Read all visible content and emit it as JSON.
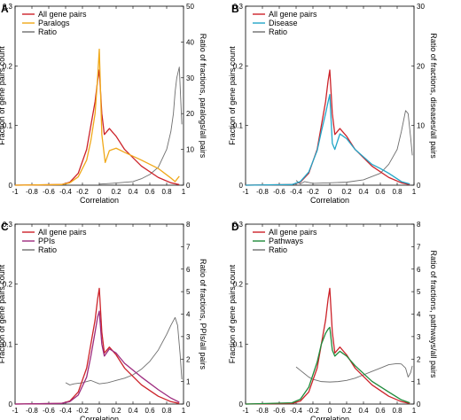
{
  "chart_data": [
    {
      "type": "line",
      "panel": "A",
      "xlabel": "Correlation",
      "ylabel": "Fraction of gene pairs count",
      "y2label": "Ratio of fractions, paralogs/all pairs",
      "xlim": [
        -1,
        1
      ],
      "ylim": [
        0,
        0.3
      ],
      "y2lim": [
        0,
        50
      ],
      "xticks": [
        -1,
        -0.8,
        -0.6,
        -0.4,
        -0.2,
        0,
        0.2,
        0.4,
        0.6,
        0.8,
        1
      ],
      "xtick_labels": [
        "-1",
        "-0.8",
        "-0.6",
        "-0.4",
        "-0.2",
        "0",
        "0.2",
        "0.4",
        "0.6",
        "0.8",
        "1"
      ],
      "yticks": [
        0,
        0.1,
        0.2,
        0.3
      ],
      "ytick_labels": [
        "0",
        "0.1",
        "0.2",
        "0.3"
      ],
      "y2ticks": [
        0,
        10,
        20,
        30,
        40,
        50
      ],
      "y2tick_labels": [
        "0",
        "10",
        "20",
        "30",
        "40",
        "50"
      ],
      "legend": "top-left",
      "series": [
        {
          "name": "All gene pairs",
          "color": "#cc2229",
          "axis": "left",
          "x": [
            -1,
            -0.45,
            -0.35,
            -0.25,
            -0.15,
            -0.1,
            -0.05,
            -0.02,
            0,
            0.03,
            0.06,
            0.12,
            0.2,
            0.3,
            0.5,
            0.7,
            0.85,
            0.95
          ],
          "y": [
            0,
            0.001,
            0.005,
            0.02,
            0.06,
            0.1,
            0.14,
            0.175,
            0.193,
            0.12,
            0.085,
            0.095,
            0.082,
            0.06,
            0.032,
            0.013,
            0.004,
            0.001
          ]
        },
        {
          "name": "Paralogs",
          "color": "#f0a818",
          "axis": "left",
          "x": [
            -1,
            -0.45,
            -0.35,
            -0.25,
            -0.15,
            -0.1,
            -0.05,
            -0.02,
            0,
            0.03,
            0.07,
            0.12,
            0.2,
            0.3,
            0.5,
            0.7,
            0.85,
            0.9,
            0.95
          ],
          "y": [
            0,
            0.001,
            0.004,
            0.014,
            0.042,
            0.075,
            0.12,
            0.18,
            0.228,
            0.085,
            0.038,
            0.058,
            0.062,
            0.055,
            0.042,
            0.028,
            0.012,
            0.006,
            0.015
          ]
        },
        {
          "name": "Ratio",
          "color": "#6e6e6e",
          "axis": "right",
          "x": [
            0,
            0.2,
            0.4,
            0.5,
            0.6,
            0.7,
            0.8,
            0.85,
            0.88,
            0.9,
            0.92,
            0.95,
            0.98
          ],
          "y": [
            0.3,
            0.6,
            1,
            1.8,
            3,
            5,
            10,
            15,
            20,
            26,
            30,
            33,
            17
          ]
        }
      ]
    },
    {
      "type": "line",
      "panel": "B",
      "xlabel": "Correlation",
      "ylabel": "Fraction of gene pairs count",
      "y2label": "Ratio of fractions, diseases/all pairs",
      "xlim": [
        -1,
        1
      ],
      "ylim": [
        0,
        0.3
      ],
      "y2lim": [
        0,
        30
      ],
      "xticks": [
        -1,
        -0.8,
        -0.6,
        -0.4,
        -0.2,
        0,
        0.2,
        0.4,
        0.6,
        0.8,
        1
      ],
      "xtick_labels": [
        "-1",
        "-0.8",
        "-0.6",
        "-0.4",
        "-0.2",
        "0",
        "0.2",
        "0.4",
        "0.6",
        "0.8",
        "1"
      ],
      "yticks": [
        0,
        0.1,
        0.2,
        0.3
      ],
      "ytick_labels": [
        "0",
        "0.1",
        "0.2",
        "0.3"
      ],
      "y2ticks": [
        0,
        10,
        20,
        30
      ],
      "y2tick_labels": [
        "0",
        "10",
        "20",
        "30"
      ],
      "legend": "top-left",
      "series": [
        {
          "name": "All gene pairs",
          "color": "#cc2229",
          "axis": "left",
          "x": [
            -1,
            -0.45,
            -0.35,
            -0.25,
            -0.15,
            -0.1,
            -0.05,
            -0.02,
            0,
            0.03,
            0.06,
            0.12,
            0.2,
            0.3,
            0.5,
            0.7,
            0.85,
            0.95
          ],
          "y": [
            0,
            0.001,
            0.005,
            0.02,
            0.06,
            0.1,
            0.14,
            0.175,
            0.193,
            0.12,
            0.085,
            0.095,
            0.082,
            0.06,
            0.032,
            0.013,
            0.004,
            0.001
          ]
        },
        {
          "name": "Disease",
          "color": "#22a6c8",
          "axis": "left",
          "x": [
            -1,
            -0.45,
            -0.35,
            -0.25,
            -0.15,
            -0.1,
            -0.05,
            -0.02,
            0,
            0.03,
            0.06,
            0.12,
            0.2,
            0.3,
            0.5,
            0.6,
            0.7,
            0.85,
            0.95
          ],
          "y": [
            0,
            0.001,
            0.006,
            0.022,
            0.058,
            0.09,
            0.12,
            0.14,
            0.152,
            0.07,
            0.06,
            0.086,
            0.078,
            0.06,
            0.035,
            0.028,
            0.02,
            0.006,
            0.002
          ]
        },
        {
          "name": "Ratio",
          "color": "#6e6e6e",
          "axis": "right",
          "x": [
            -0.4,
            -0.35,
            -0.3,
            -0.2,
            0,
            0.2,
            0.4,
            0.6,
            0.7,
            0.8,
            0.85,
            0.9,
            0.93,
            0.96,
            0.98
          ],
          "y": [
            0.8,
            0.2,
            0.6,
            0.3,
            0.4,
            0.5,
            0.9,
            2,
            3.5,
            6,
            9,
            12.5,
            12,
            8,
            5
          ]
        }
      ]
    },
    {
      "type": "line",
      "panel": "C",
      "xlabel": "Correlation",
      "ylabel": "Fraction of gene pairs count",
      "y2label": "Ratio of fractions, PPIs/all pairs",
      "xlim": [
        -1,
        1
      ],
      "ylim": [
        0,
        0.3
      ],
      "y2lim": [
        0,
        8
      ],
      "xticks": [
        -1,
        -0.8,
        -0.6,
        -0.4,
        -0.2,
        0,
        0.2,
        0.4,
        0.6,
        0.8,
        1
      ],
      "xtick_labels": [
        "-1",
        "-0.8",
        "-0.6",
        "-0.4",
        "-0.2",
        "0",
        "0.2",
        "0.4",
        "0.6",
        "0.8",
        "1"
      ],
      "yticks": [
        0,
        0.1,
        0.2,
        0.3
      ],
      "ytick_labels": [
        "0",
        "0.1",
        "0.2",
        "0.3"
      ],
      "y2ticks": [
        0,
        1,
        2,
        3,
        4,
        5,
        6,
        7,
        8
      ],
      "y2tick_labels": [
        "0",
        "1",
        "2",
        "3",
        "4",
        "5",
        "6",
        "7",
        "8"
      ],
      "legend": "top-left",
      "series": [
        {
          "name": "All gene pairs",
          "color": "#cc2229",
          "axis": "left",
          "x": [
            -1,
            -0.45,
            -0.35,
            -0.25,
            -0.15,
            -0.1,
            -0.05,
            -0.02,
            0,
            0.03,
            0.06,
            0.12,
            0.2,
            0.3,
            0.5,
            0.7,
            0.85,
            0.95
          ],
          "y": [
            0,
            0.001,
            0.005,
            0.02,
            0.06,
            0.1,
            0.14,
            0.175,
            0.193,
            0.12,
            0.085,
            0.095,
            0.082,
            0.06,
            0.032,
            0.013,
            0.004,
            0.001
          ]
        },
        {
          "name": "PPIs",
          "color": "#9c2a7e",
          "axis": "left",
          "x": [
            -1,
            -0.45,
            -0.35,
            -0.25,
            -0.15,
            -0.1,
            -0.05,
            -0.02,
            0,
            0.03,
            0.06,
            0.12,
            0.2,
            0.3,
            0.5,
            0.7,
            0.85,
            0.95
          ],
          "y": [
            0,
            0.001,
            0.004,
            0.015,
            0.045,
            0.08,
            0.12,
            0.145,
            0.155,
            0.1,
            0.08,
            0.092,
            0.085,
            0.068,
            0.045,
            0.024,
            0.01,
            0.003
          ]
        },
        {
          "name": "Ratio",
          "color": "#6e6e6e",
          "axis": "right",
          "x": [
            -0.4,
            -0.35,
            -0.3,
            -0.2,
            -0.1,
            0,
            0.1,
            0.2,
            0.3,
            0.4,
            0.5,
            0.6,
            0.7,
            0.8,
            0.85,
            0.9,
            0.93,
            0.96,
            0.98
          ],
          "y": [
            0.95,
            0.85,
            0.9,
            0.95,
            1.05,
            0.9,
            0.95,
            1.05,
            1.15,
            1.3,
            1.55,
            1.9,
            2.4,
            3.1,
            3.5,
            3.85,
            3.5,
            2.2,
            1.1
          ]
        }
      ]
    },
    {
      "type": "line",
      "panel": "D",
      "xlabel": "Correlation",
      "ylabel": "Fraction of gene pairs count",
      "y2label": "Ratio of fractions, pathways/all pairs",
      "xlim": [
        -1,
        1
      ],
      "ylim": [
        0,
        0.3
      ],
      "y2lim": [
        0,
        8
      ],
      "xticks": [
        -1,
        -0.8,
        -0.6,
        -0.4,
        -0.2,
        0,
        0.2,
        0.4,
        0.6,
        0.8,
        1
      ],
      "xtick_labels": [
        "-1",
        "-0.8",
        "-0.6",
        "-0.4",
        "-0.2",
        "0",
        "0.2",
        "0.4",
        "0.6",
        "0.8",
        "1"
      ],
      "yticks": [
        0,
        0.1,
        0.2,
        0.3
      ],
      "ytick_labels": [
        "0",
        "0.1",
        "0.2",
        "0.3"
      ],
      "y2ticks": [
        0,
        1,
        2,
        3,
        4,
        5,
        6,
        7,
        8
      ],
      "y2tick_labels": [
        "0",
        "1",
        "2",
        "3",
        "4",
        "5",
        "6",
        "7",
        "8"
      ],
      "legend": "top-left",
      "series": [
        {
          "name": "All gene pairs",
          "color": "#cc2229",
          "axis": "left",
          "x": [
            -1,
            -0.45,
            -0.35,
            -0.25,
            -0.15,
            -0.1,
            -0.05,
            -0.02,
            0,
            0.03,
            0.06,
            0.12,
            0.2,
            0.3,
            0.5,
            0.7,
            0.85,
            0.95
          ],
          "y": [
            0,
            0.001,
            0.005,
            0.02,
            0.06,
            0.1,
            0.14,
            0.175,
            0.193,
            0.12,
            0.085,
            0.095,
            0.082,
            0.06,
            0.032,
            0.013,
            0.004,
            0.001
          ]
        },
        {
          "name": "Pathways",
          "color": "#1e8a3a",
          "axis": "left",
          "x": [
            -1,
            -0.45,
            -0.35,
            -0.25,
            -0.15,
            -0.1,
            -0.05,
            -0.02,
            0,
            0.03,
            0.06,
            0.12,
            0.2,
            0.3,
            0.5,
            0.7,
            0.85,
            0.95
          ],
          "y": [
            0,
            0.002,
            0.008,
            0.028,
            0.07,
            0.1,
            0.118,
            0.125,
            0.128,
            0.09,
            0.08,
            0.088,
            0.08,
            0.064,
            0.038,
            0.02,
            0.007,
            0.002
          ]
        },
        {
          "name": "Ratio",
          "color": "#6e6e6e",
          "axis": "right",
          "x": [
            -0.4,
            -0.35,
            -0.3,
            -0.25,
            -0.2,
            -0.1,
            0,
            0.1,
            0.2,
            0.3,
            0.4,
            0.5,
            0.6,
            0.7,
            0.8,
            0.85,
            0.9,
            0.93,
            0.96,
            0.98
          ],
          "y": [
            1.65,
            1.5,
            1.35,
            1.2,
            1.1,
            1.0,
            0.98,
            1.0,
            1.05,
            1.15,
            1.3,
            1.45,
            1.6,
            1.75,
            1.8,
            1.78,
            1.6,
            1.2,
            1.4,
            1.7
          ]
        }
      ]
    }
  ]
}
